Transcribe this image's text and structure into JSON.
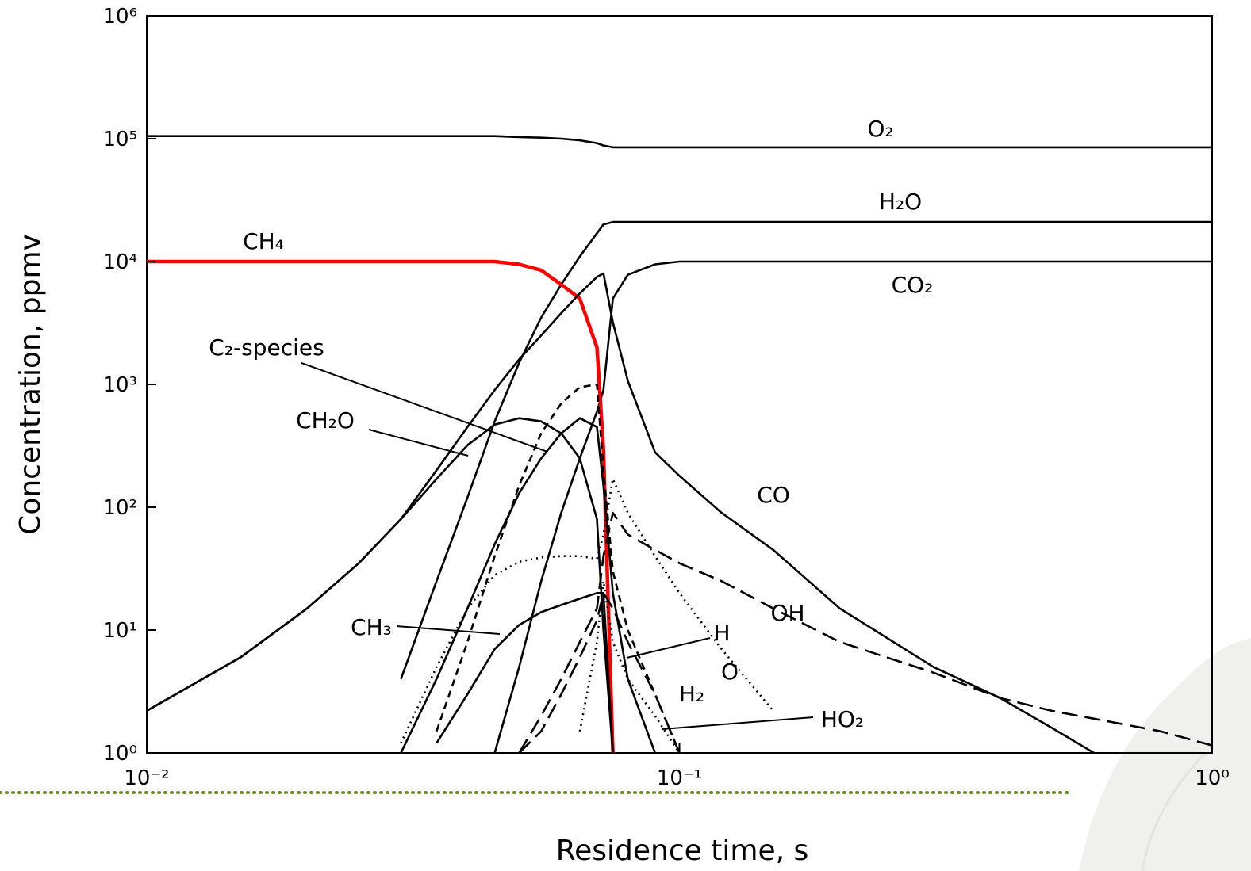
{
  "chart_data": {
    "type": "line",
    "x_label": "Residence time, s",
    "y_label": "Concentration, ppmv",
    "xlog": true,
    "ylog": true,
    "xlim": [
      0.01,
      1
    ],
    "ylim": [
      1,
      1000000
    ],
    "xticks": [
      {
        "value": 0.01,
        "label": "10⁻²"
      },
      {
        "value": 0.1,
        "label": "10⁻¹"
      },
      {
        "value": 1,
        "label": "10⁰"
      }
    ],
    "yticks": [
      {
        "value": 1,
        "label": "10⁰"
      },
      {
        "value": 10,
        "label": "10¹"
      },
      {
        "value": 100,
        "label": "10²"
      },
      {
        "value": 1000,
        "label": "10³"
      },
      {
        "value": 10000,
        "label": "10⁴"
      },
      {
        "value": 100000,
        "label": "10⁵"
      },
      {
        "value": 1000000,
        "label": "10⁶"
      }
    ],
    "x": [
      0.01,
      0.015,
      0.02,
      0.025,
      0.03,
      0.035,
      0.04,
      0.045,
      0.05,
      0.055,
      0.06,
      0.065,
      0.07,
      0.072,
      0.075,
      0.08,
      0.09,
      0.1,
      0.12,
      0.15,
      0.2,
      0.3,
      0.4,
      0.5,
      0.6,
      0.8,
      1.0
    ],
    "series": [
      {
        "name": "O₂",
        "color": "#000000",
        "dash": "solid",
        "values": [
          105000,
          105000,
          105000,
          105000,
          105000,
          105000,
          105000,
          105000,
          103000,
          102000,
          100000,
          97000,
          92000,
          88000,
          85000,
          85000,
          85000,
          85000,
          85000,
          85000,
          85000,
          85000,
          85000,
          85000,
          85000,
          85000,
          85000
        ]
      },
      {
        "name": "H₂O",
        "color": "#000000",
        "dash": "solid",
        "values": [
          null,
          null,
          null,
          null,
          4,
          25,
          120,
          500,
          1500,
          3500,
          6500,
          11000,
          17000,
          20000,
          21000,
          21000,
          21000,
          21000,
          21000,
          21000,
          21000,
          21000,
          21000,
          21000,
          21000,
          21000,
          21000
        ]
      },
      {
        "name": "CO₂",
        "color": "#000000",
        "dash": "solid",
        "values": [
          null,
          null,
          null,
          null,
          null,
          null,
          null,
          1,
          5,
          25,
          90,
          250,
          600,
          900,
          5000,
          7800,
          9500,
          10000,
          10000,
          10000,
          10000,
          10000,
          10000,
          10000,
          10000,
          10000,
          10000
        ]
      },
      {
        "name": "CH₄",
        "color": "#ff0000",
        "dash": "solid",
        "values": [
          10000,
          10000,
          10000,
          10000,
          10000,
          10000,
          10000,
          10000,
          9500,
          8500,
          6500,
          5000,
          2000,
          300,
          1,
          null,
          null,
          null,
          null,
          null,
          null,
          null,
          null,
          null,
          null,
          null,
          null
        ]
      },
      {
        "name": "C₂-species",
        "color": "#000000",
        "dash": "solid",
        "values": [
          null,
          null,
          null,
          null,
          1,
          4,
          15,
          50,
          130,
          250,
          400,
          530,
          450,
          150,
          20,
          4,
          1,
          null,
          null,
          null,
          null,
          null,
          null,
          null,
          null,
          null,
          null
        ]
      },
      {
        "name": "CH₂O",
        "color": "#000000",
        "dash": "solid",
        "values": [
          2.2,
          6,
          15,
          35,
          80,
          170,
          320,
          470,
          530,
          500,
          400,
          250,
          80,
          10,
          1,
          null,
          null,
          null,
          null,
          null,
          null,
          null,
          null,
          null,
          null,
          null,
          null
        ]
      },
      {
        "name": "CO",
        "color": "#000000",
        "dash": "solid",
        "values": [
          2.2,
          6,
          15,
          35,
          80,
          200,
          450,
          900,
          1600,
          2500,
          3800,
          5500,
          7500,
          8000,
          3200,
          1070,
          280,
          180,
          90,
          45,
          15,
          5,
          2.8,
          1.6,
          1,
          null,
          null
        ]
      },
      {
        "name": "OH",
        "color": "#000000",
        "dash": "long-dashed",
        "values": [
          null,
          null,
          null,
          null,
          null,
          null,
          null,
          null,
          1,
          2,
          4,
          8,
          15,
          40,
          90,
          60,
          45,
          35,
          25,
          15,
          8,
          4.5,
          2.8,
          2.2,
          1.9,
          1.5,
          1.15
        ]
      },
      {
        "name": "CH₃",
        "color": "#000000",
        "dash": "solid",
        "values": [
          null,
          null,
          null,
          null,
          null,
          1.2,
          3,
          7,
          11,
          14,
          16,
          18,
          20,
          20,
          1,
          null,
          null,
          null,
          null,
          null,
          null,
          null,
          null,
          null,
          null,
          null,
          null
        ]
      },
      {
        "name": "H",
        "color": "#000000",
        "dash": "long-dashed",
        "values": [
          null,
          null,
          null,
          null,
          null,
          null,
          null,
          null,
          1,
          1.5,
          3,
          6,
          12,
          20,
          15,
          8,
          3,
          1,
          null,
          null,
          null,
          null,
          null,
          null,
          null,
          null,
          null
        ]
      },
      {
        "name": "O",
        "color": "#000000",
        "dash": "dotted",
        "values": [
          null,
          null,
          null,
          null,
          1.2,
          5,
          15,
          28,
          36,
          39,
          40,
          40,
          38,
          60,
          170,
          90,
          40,
          20,
          7,
          2.2,
          null,
          null,
          null,
          null,
          null,
          null,
          null
        ]
      },
      {
        "name": "H₂",
        "color": "#000000",
        "dash": "dashed",
        "values": [
          null,
          null,
          null,
          null,
          null,
          1.5,
          8,
          40,
          150,
          400,
          700,
          950,
          1000,
          200,
          30,
          10,
          3,
          1,
          null,
          null,
          null,
          null,
          null,
          null,
          null,
          null,
          null
        ]
      },
      {
        "name": "HO₂",
        "color": "#000000",
        "dash": "dotted",
        "values": [
          null,
          null,
          null,
          null,
          null,
          null,
          null,
          null,
          null,
          null,
          null,
          1.5,
          8,
          25,
          8,
          4,
          2,
          1,
          null,
          null,
          null,
          null,
          null,
          null,
          null,
          null,
          null
        ]
      }
    ]
  }
}
